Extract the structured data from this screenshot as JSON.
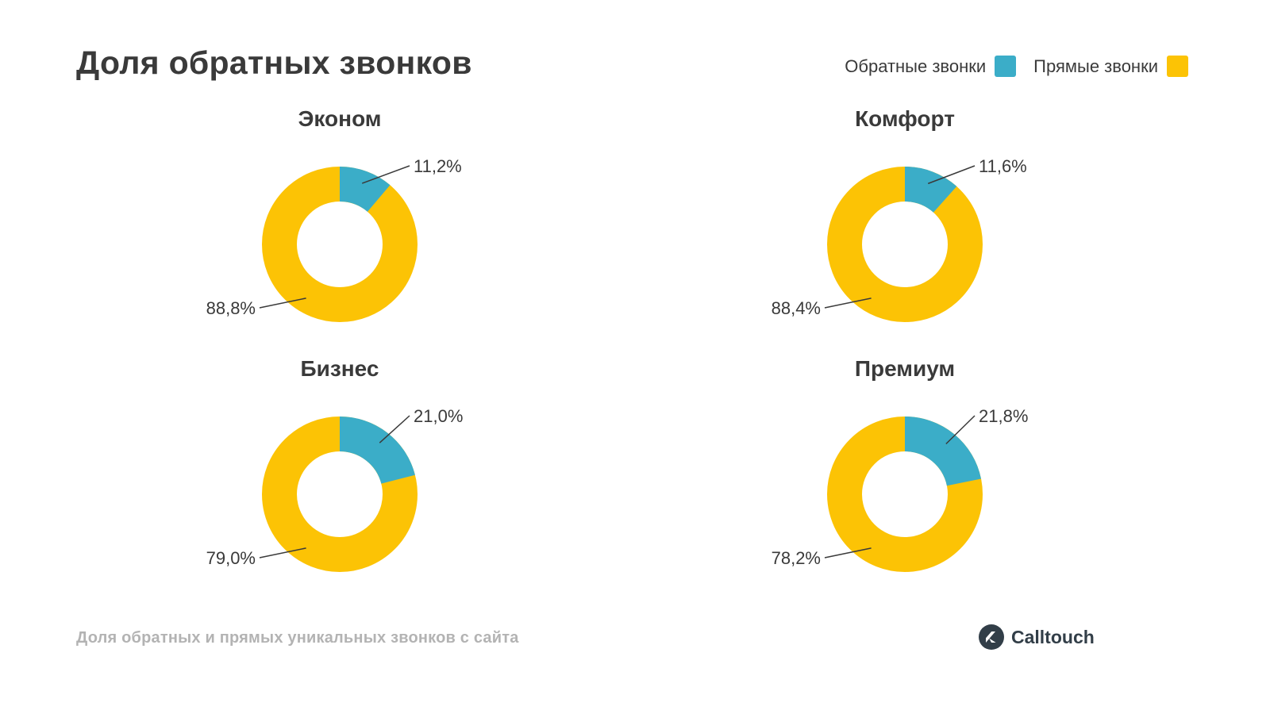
{
  "page": {
    "title": "Доля обратных звонков",
    "footnote": "Доля обратных и прямых уникальных звонков с сайта",
    "brand": "Calltouch"
  },
  "legend": [
    {
      "label": "Обратные звонки",
      "color": "#3BADC8"
    },
    {
      "label": "Прямые звонки",
      "color": "#FCC305"
    }
  ],
  "colors": {
    "callback": "#3BADC8",
    "direct": "#FCC305",
    "text": "#3A3A3A",
    "muted": "#B3B3B3",
    "logo": "#323E48"
  },
  "chart_data": [
    {
      "type": "pie",
      "title": "Эконом",
      "legend_position": "top-right",
      "segments": [
        {
          "label": "Обратные звонки",
          "value": 11.2,
          "display": "11,2%"
        },
        {
          "label": "Прямые звонки",
          "value": 88.8,
          "display": "88,8%"
        }
      ]
    },
    {
      "type": "pie",
      "title": "Комфорт",
      "segments": [
        {
          "label": "Обратные звонки",
          "value": 11.6,
          "display": "11,6%"
        },
        {
          "label": "Прямые звонки",
          "value": 88.4,
          "display": "88,4%"
        }
      ]
    },
    {
      "type": "pie",
      "title": "Бизнес",
      "segments": [
        {
          "label": "Обратные звонки",
          "value": 21.0,
          "display": "21,0%"
        },
        {
          "label": "Прямые звонки",
          "value": 79.0,
          "display": "79,0%"
        }
      ]
    },
    {
      "type": "pie",
      "title": "Премиум",
      "segments": [
        {
          "label": "Обратные звонки",
          "value": 21.8,
          "display": "21,8%"
        },
        {
          "label": "Прямые звонки",
          "value": 78.2,
          "display": "78,2%"
        }
      ]
    }
  ]
}
